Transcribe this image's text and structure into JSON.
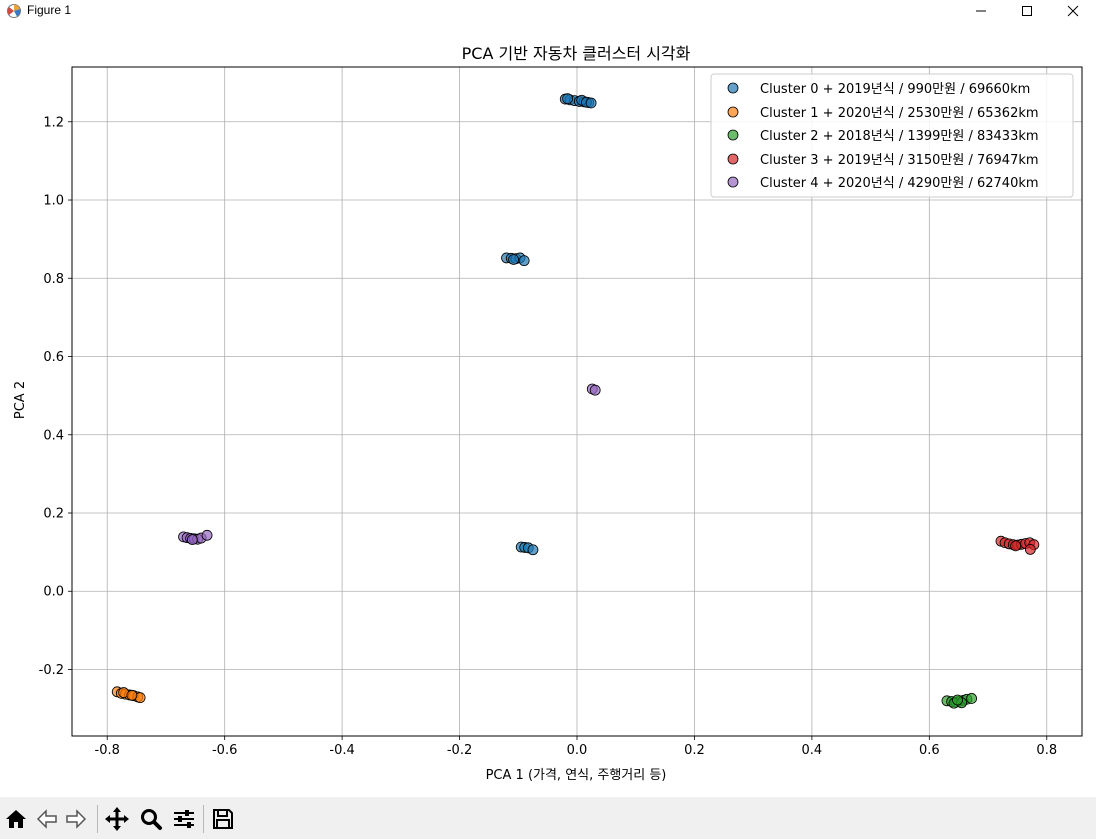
{
  "window": {
    "title": "Figure 1"
  },
  "toolbar": {
    "icons": [
      "home-icon",
      "back-arrow-icon",
      "forward-arrow-icon",
      "pan-icon",
      "zoom-icon",
      "configure-subplots-icon",
      "save-icon"
    ]
  },
  "colors": {
    "cluster0": "#1f77b4",
    "cluster1": "#ff7f0e",
    "cluster2": "#2ca02c",
    "cluster3": "#d62728",
    "cluster4": "#9467bd",
    "grid": "#b0b0b0",
    "toolbar_bg": "#f0f0f0"
  },
  "chart_data": {
    "type": "scatter",
    "title": "PCA 기반 자동차 클러스터 시각화",
    "xlabel": "PCA 1 (가격, 연식, 주행거리 등)",
    "ylabel": "PCA 2",
    "xlim": [
      -0.86,
      0.86
    ],
    "ylim": [
      -0.37,
      1.34
    ],
    "xticks": [
      -0.8,
      -0.6,
      -0.4,
      -0.2,
      0.0,
      0.2,
      0.4,
      0.6,
      0.8
    ],
    "xtick_labels": [
      "-0.8",
      "-0.6",
      "-0.4",
      "-0.2",
      "0.0",
      "0.2",
      "0.4",
      "0.6",
      "0.8"
    ],
    "yticks": [
      -0.2,
      0.0,
      0.2,
      0.4,
      0.6,
      0.8,
      1.0,
      1.2
    ],
    "ytick_labels": [
      "-0.2",
      "0.0",
      "0.2",
      "0.4",
      "0.6",
      "0.8",
      "1.0",
      "1.2"
    ],
    "grid": true,
    "legend_position": "top-right",
    "series": [
      {
        "name": "Cluster 0 + 2019년식 / 990만원 / 69660km",
        "color": "#1f77b4",
        "points": [
          [
            -0.02,
            1.258
          ],
          [
            -0.012,
            1.256
          ],
          [
            -0.004,
            1.254
          ],
          [
            0.004,
            1.252
          ],
          [
            0.012,
            1.251
          ],
          [
            0.02,
            1.249
          ],
          [
            -0.016,
            1.259
          ],
          [
            0.008,
            1.255
          ],
          [
            0.016,
            1.25
          ],
          [
            0.024,
            1.248
          ],
          [
            -0.12,
            0.852
          ],
          [
            -0.112,
            0.851
          ],
          [
            -0.104,
            0.85
          ],
          [
            -0.097,
            0.852
          ],
          [
            -0.09,
            0.845
          ],
          [
            -0.108,
            0.848
          ],
          [
            -0.095,
            0.113
          ],
          [
            -0.089,
            0.112
          ],
          [
            -0.083,
            0.111
          ],
          [
            -0.075,
            0.106
          ]
        ]
      },
      {
        "name": "Cluster 1 + 2020년식 / 2530만원 / 65362km",
        "color": "#ff7f0e",
        "points": [
          [
            -0.783,
            -0.257
          ],
          [
            -0.776,
            -0.261
          ],
          [
            -0.769,
            -0.263
          ],
          [
            -0.762,
            -0.265
          ],
          [
            -0.755,
            -0.267
          ],
          [
            -0.748,
            -0.27
          ],
          [
            -0.744,
            -0.272
          ],
          [
            -0.772,
            -0.259
          ],
          [
            -0.758,
            -0.266
          ]
        ]
      },
      {
        "name": "Cluster 2 + 2018년식 / 1399만원 / 83433km",
        "color": "#2ca02c",
        "points": [
          [
            0.63,
            -0.28
          ],
          [
            0.638,
            -0.282
          ],
          [
            0.645,
            -0.283
          ],
          [
            0.652,
            -0.281
          ],
          [
            0.658,
            -0.279
          ],
          [
            0.664,
            -0.276
          ],
          [
            0.672,
            -0.274
          ],
          [
            0.642,
            -0.286
          ],
          [
            0.655,
            -0.285
          ],
          [
            0.648,
            -0.278
          ]
        ]
      },
      {
        "name": "Cluster 3 + 2019년식 / 3150만원 / 76947km",
        "color": "#d62728",
        "points": [
          [
            0.722,
            0.128
          ],
          [
            0.729,
            0.124
          ],
          [
            0.736,
            0.121
          ],
          [
            0.743,
            0.119
          ],
          [
            0.75,
            0.118
          ],
          [
            0.757,
            0.12
          ],
          [
            0.764,
            0.122
          ],
          [
            0.771,
            0.124
          ],
          [
            0.778,
            0.119
          ],
          [
            0.772,
            0.107
          ],
          [
            0.747,
            0.116
          ]
        ]
      },
      {
        "name": "Cluster 4 + 2020년식 / 4290만원 / 62740km",
        "color": "#9467bd",
        "points": [
          [
            -0.67,
            0.139
          ],
          [
            -0.664,
            0.137
          ],
          [
            -0.658,
            0.135
          ],
          [
            -0.652,
            0.134
          ],
          [
            -0.646,
            0.133
          ],
          [
            -0.64,
            0.136
          ],
          [
            -0.63,
            0.143
          ],
          [
            -0.655,
            0.132
          ],
          [
            0.026,
            0.517
          ],
          [
            0.031,
            0.514
          ]
        ]
      }
    ]
  }
}
